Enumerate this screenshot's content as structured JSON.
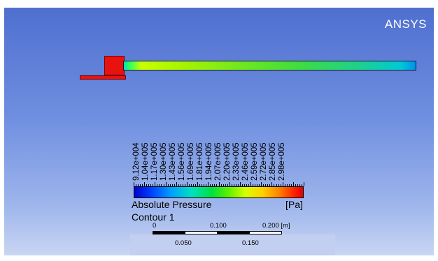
{
  "app": {
    "brand": "ANSYS"
  },
  "colors": {
    "background_top": "#4f6fd0",
    "background_bottom": "#c9d6f3",
    "solid_red": "#e8120f"
  },
  "legend": {
    "labels": [
      "9.12e+004",
      "1.04e+005",
      "1.17e+005",
      "1.30e+005",
      "1.43e+005",
      "1.56e+005",
      "1.69e+005",
      "1.81e+005",
      "1.94e+005",
      "2.07e+005",
      "2.20e+005",
      "2.33e+005",
      "2.46e+005",
      "2.59e+005",
      "2.72e+005",
      "2.85e+005",
      "2.98e+005"
    ],
    "title": "Absolute Pressure",
    "unit": "[Pa]",
    "contour_name": "Contour 1"
  },
  "scale_bar": {
    "top_labels": [
      "0",
      "0.100",
      "0.200 [m]"
    ],
    "bottom_labels": [
      "0.050",
      "0.150"
    ]
  }
}
